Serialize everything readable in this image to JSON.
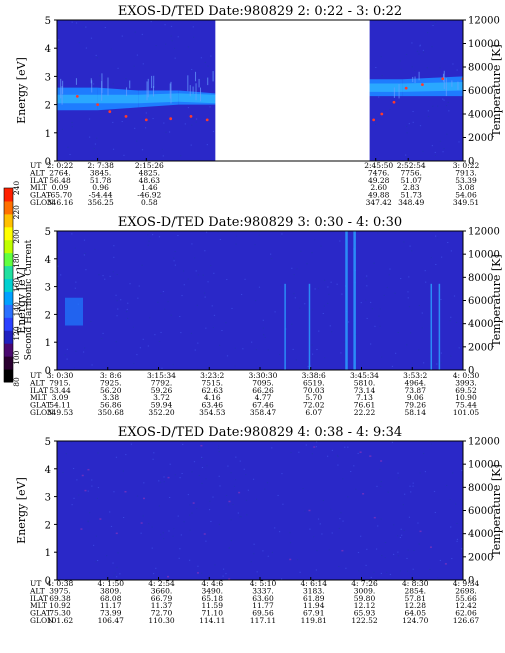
{
  "colorbar": {
    "label": "Second Harmonic Current",
    "ticks": [
      "80",
      "100",
      "120",
      "140",
      "160",
      "180",
      "200",
      "220",
      "240"
    ],
    "colors": [
      "#000000",
      "#2a0030",
      "#4a0870",
      "#2020c0",
      "#2a40ff",
      "#2a70ff",
      "#00a0ff",
      "#00d0d0",
      "#20e0a0",
      "#60ff40",
      "#c0ff00",
      "#ffff00",
      "#ffc000",
      "#ff7000",
      "#ff2000"
    ]
  },
  "ephem_labels": [
    "UT",
    "ALT",
    "ILAT",
    "MLT",
    "GLAT",
    "GLON"
  ],
  "colors": {
    "background": "#2a28c8",
    "band": "#1e7cff",
    "band_core": "#2aa8ff",
    "noise": "#3a46e0",
    "temperature_points": "#ff3a2a",
    "gap": "#ffffff"
  },
  "chart_data": [
    {
      "type": "heatmap",
      "title": "EXOS-D/TED   Date:980829  2: 0:22 - 3: 0:22",
      "ylabel": "Energy [eV]",
      "y2label": "Temperature [K]",
      "ylim": [
        0,
        5
      ],
      "y2lim": [
        0,
        12000
      ],
      "yticks": [
        "0",
        "1",
        "2",
        "3",
        "4",
        "5"
      ],
      "y2ticks": [
        "0",
        "2000",
        "4000",
        "6000",
        "8000",
        "10000",
        "12000"
      ],
      "data_gap": [
        0.39,
        0.77
      ],
      "band": [
        [
          0.0,
          1.8,
          2.6
        ],
        [
          0.1,
          1.8,
          2.6
        ],
        [
          0.2,
          1.9,
          2.5
        ],
        [
          0.3,
          2.0,
          2.5
        ],
        [
          0.39,
          2.0,
          2.4
        ],
        [
          0.77,
          2.3,
          2.9
        ],
        [
          0.85,
          2.3,
          2.9
        ],
        [
          1.0,
          2.3,
          3.0
        ]
      ],
      "temperature": [
        [
          0.05,
          5500
        ],
        [
          0.1,
          4800
        ],
        [
          0.13,
          4200
        ],
        [
          0.17,
          3800
        ],
        [
          0.22,
          3500
        ],
        [
          0.28,
          3600
        ],
        [
          0.33,
          3800
        ],
        [
          0.37,
          3500
        ],
        [
          0.78,
          3500
        ],
        [
          0.8,
          4000
        ],
        [
          0.83,
          5000
        ],
        [
          0.86,
          6200
        ],
        [
          0.9,
          6500
        ],
        [
          0.95,
          7000
        ],
        [
          1.0,
          7000
        ]
      ],
      "ephemeris": {
        "UT": [
          "2: 0:22",
          "2: 7:38",
          "2:15:26",
          "2:45:50",
          "2:52:54",
          "3: 0:22"
        ],
        "ALT": [
          "2764.",
          "3845.",
          "4825.",
          "7476.",
          "7756.",
          "7913."
        ],
        "ILAT": [
          "56.48",
          "51.78",
          "48.63",
          "49.28",
          "51.07",
          "53.39"
        ],
        "MLT": [
          "0.09",
          "0.96",
          "1.46",
          "2.60",
          "2.83",
          "3.08"
        ],
        "GLAT": [
          "-65.70",
          "-54.44",
          "-46.92",
          "49.88",
          "51.73",
          "54.06"
        ],
        "GLON": [
          "346.16",
          "356.25",
          "0.58",
          "347.42",
          "348.49",
          "349.51"
        ]
      }
    },
    {
      "type": "heatmap",
      "title": "EXOS-D/TED   Date:980829  3: 0:30 - 4: 0:30",
      "ylabel": "Energy [eV]",
      "y2label": "Temperature [K]",
      "ylim": [
        0,
        5
      ],
      "y2lim": [
        0,
        12000
      ],
      "yticks": [
        "0",
        "1",
        "2",
        "3",
        "4",
        "5"
      ],
      "y2ticks": [
        "0",
        "2000",
        "4000",
        "6000",
        "8000",
        "10000",
        "12000"
      ],
      "spikes": [
        0.56,
        0.62,
        0.71,
        0.73,
        0.92,
        0.94
      ],
      "ephemeris": {
        "UT": [
          "3: 0:30",
          "3: 8:6",
          "3:15:34",
          "3:23:2",
          "3:30:30",
          "3:38:6",
          "3:45:34",
          "3:53:2",
          "4: 0:30"
        ],
        "ALT": [
          "7915.",
          "7925.",
          "7792.",
          "7515.",
          "7095.",
          "6519.",
          "5810.",
          "4964.",
          "3993."
        ],
        "ILAT": [
          "53.44",
          "56.20",
          "59.26",
          "62.63",
          "66.26",
          "70.03",
          "73.14",
          "73.87",
          "69.52"
        ],
        "MLT": [
          "3.09",
          "3.38",
          "3.72",
          "4.16",
          "4.77",
          "5.70",
          "7.13",
          "9.06",
          "10.90"
        ],
        "GLAT": [
          "54.11",
          "56.86",
          "59.94",
          "63.46",
          "67.46",
          "72.02",
          "76.61",
          "79.26",
          "75.44"
        ],
        "GLON": [
          "349.53",
          "350.68",
          "352.20",
          "354.53",
          "358.47",
          "6.07",
          "22.22",
          "58.14",
          "101.05"
        ]
      }
    },
    {
      "type": "heatmap",
      "title": "EXOS-D/TED   Date:980829  4: 0:38 - 4: 9:34",
      "ylabel": "Energy [eV]",
      "y2label": "Temperature [K]",
      "ylim": [
        0,
        5
      ],
      "y2lim": [
        0,
        12000
      ],
      "yticks": [
        "0",
        "1",
        "2",
        "3",
        "4",
        "5"
      ],
      "y2ticks": [
        "0",
        "2000",
        "4000",
        "6000",
        "8000",
        "10000",
        "12000"
      ],
      "ephemeris": {
        "UT": [
          "4: 0:38",
          "4: 1:50",
          "4: 2:54",
          "4: 4:6",
          "4: 5:10",
          "4: 6:14",
          "4: 7:26",
          "4: 8:30",
          "4: 9:34"
        ],
        "ALT": [
          "3975.",
          "3809.",
          "3660.",
          "3490.",
          "3337.",
          "3183.",
          "3009.",
          "2854.",
          "2698."
        ],
        "ILAT": [
          "69.38",
          "68.08",
          "66.79",
          "65.18",
          "63.60",
          "61.89",
          "59.80",
          "57.81",
          "55.66"
        ],
        "MLT": [
          "10.92",
          "11.17",
          "11.37",
          "11.59",
          "11.77",
          "11.94",
          "12.12",
          "12.28",
          "12.42"
        ],
        "GLAT": [
          "75.30",
          "73.99",
          "72.70",
          "71.10",
          "69.56",
          "67.91",
          "65.93",
          "64.05",
          "62.06"
        ],
        "GLON": [
          "101.62",
          "106.47",
          "110.30",
          "114.11",
          "117.11",
          "119.81",
          "122.52",
          "124.70",
          "126.67"
        ]
      }
    }
  ]
}
